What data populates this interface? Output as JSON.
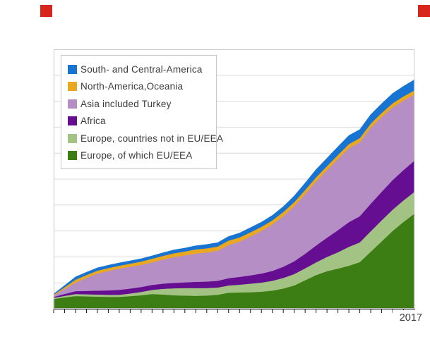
{
  "page": {
    "background_color": "#ffffff"
  },
  "branding": {
    "left_square_color": "#d9261c",
    "right_square_color": "#d9261c"
  },
  "x_axis": {
    "visible_label": "2017"
  },
  "legend": {
    "items": [
      {
        "label": "South- and Central-America",
        "color": "#1874D2"
      },
      {
        "label": "North-America,Oceania",
        "color": "#E9A820"
      },
      {
        "label": "Asia included Turkey",
        "color": "#B58EC6"
      },
      {
        "label": "Africa",
        "color": "#650E92"
      },
      {
        "label": "Europe, countries not in EU/EEA",
        "color": "#A2C383"
      },
      {
        "label": "Europe, of which EU/EEA",
        "color": "#3D7E14"
      }
    ]
  },
  "chart_data": {
    "type": "area",
    "stacked": true,
    "title": "",
    "xlabel": "",
    "ylabel": "",
    "x": [
      1984,
      1985,
      1986,
      1987,
      1988,
      1989,
      1990,
      1991,
      1992,
      1993,
      1994,
      1995,
      1996,
      1997,
      1998,
      1999,
      2000,
      2001,
      2002,
      2003,
      2004,
      2005,
      2006,
      2007,
      2008,
      2009,
      2010,
      2011,
      2012,
      2013,
      2014,
      2015,
      2016,
      2017
    ],
    "x_tick_labels_visible": [
      "2017"
    ],
    "y_tick_labels_visible": false,
    "y_units": "gridline units (no numeric y labels shown in image)",
    "ylim": [
      0,
      10
    ],
    "grid": "horizontal, 10 intervals",
    "legend_position": "top-left inside plot, reverse stack order",
    "series": [
      {
        "name": "Europe, of which EU/EEA",
        "color": "#3D7E14",
        "values": [
          0.38,
          0.44,
          0.49,
          0.48,
          0.47,
          0.46,
          0.46,
          0.49,
          0.52,
          0.57,
          0.55,
          0.52,
          0.51,
          0.5,
          0.51,
          0.54,
          0.62,
          0.63,
          0.64,
          0.66,
          0.7,
          0.78,
          0.9,
          1.1,
          1.3,
          1.45,
          1.55,
          1.66,
          1.8,
          2.2,
          2.6,
          3.0,
          3.35,
          3.67
        ]
      },
      {
        "name": "Europe, countries not in EU/EEA",
        "color": "#A2C383",
        "values": [
          0.04,
          0.06,
          0.08,
          0.08,
          0.08,
          0.08,
          0.08,
          0.1,
          0.13,
          0.16,
          0.22,
          0.27,
          0.29,
          0.3,
          0.29,
          0.28,
          0.28,
          0.3,
          0.33,
          0.35,
          0.38,
          0.41,
          0.44,
          0.46,
          0.49,
          0.55,
          0.63,
          0.73,
          0.76,
          0.79,
          0.81,
          0.82,
          0.83,
          0.84
        ]
      },
      {
        "name": "Africa",
        "color": "#650E92",
        "values": [
          0.04,
          0.07,
          0.11,
          0.13,
          0.15,
          0.17,
          0.19,
          0.19,
          0.19,
          0.19,
          0.2,
          0.21,
          0.22,
          0.24,
          0.25,
          0.26,
          0.28,
          0.3,
          0.32,
          0.35,
          0.38,
          0.43,
          0.49,
          0.56,
          0.65,
          0.74,
          0.85,
          0.95,
          1.01,
          1.06,
          1.1,
          1.14,
          1.17,
          1.2
        ]
      },
      {
        "name": "Asia included Turkey",
        "color": "#B58EC6",
        "values": [
          0.05,
          0.19,
          0.33,
          0.5,
          0.66,
          0.75,
          0.82,
          0.84,
          0.85,
          0.87,
          0.93,
          0.99,
          1.04,
          1.09,
          1.12,
          1.16,
          1.28,
          1.36,
          1.5,
          1.64,
          1.79,
          1.95,
          2.12,
          2.3,
          2.47,
          2.6,
          2.74,
          2.85,
          2.85,
          2.93,
          2.88,
          2.8,
          2.68,
          2.55
        ]
      },
      {
        "name": "North-America,Oceania",
        "color": "#E9A820",
        "values": [
          0.03,
          0.07,
          0.11,
          0.11,
          0.11,
          0.11,
          0.11,
          0.12,
          0.13,
          0.14,
          0.14,
          0.15,
          0.15,
          0.16,
          0.16,
          0.16,
          0.17,
          0.16,
          0.16,
          0.16,
          0.16,
          0.16,
          0.16,
          0.16,
          0.16,
          0.16,
          0.16,
          0.16,
          0.16,
          0.16,
          0.16,
          0.16,
          0.16,
          0.16
        ]
      },
      {
        "name": "South- and Central-America",
        "color": "#1874D2",
        "values": [
          0.03,
          0.07,
          0.11,
          0.11,
          0.11,
          0.11,
          0.11,
          0.11,
          0.11,
          0.11,
          0.12,
          0.13,
          0.13,
          0.14,
          0.15,
          0.15,
          0.16,
          0.17,
          0.18,
          0.18,
          0.19,
          0.21,
          0.24,
          0.27,
          0.3,
          0.31,
          0.32,
          0.33,
          0.33,
          0.35,
          0.36,
          0.38,
          0.39,
          0.41
        ]
      }
    ],
    "style": {
      "gridline_color": "#D9D9D9",
      "plot_border_color": "#C8C8C8",
      "axis_color": "#1A1A1A",
      "plot_background": "#FFFFFF"
    }
  }
}
